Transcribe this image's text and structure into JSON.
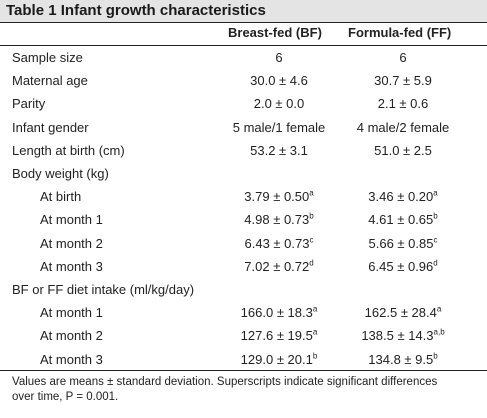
{
  "table": {
    "title": "Table 1 Infant growth characteristics",
    "columns": [
      "Breast-fed (BF)",
      "Formula-fed (FF)"
    ],
    "rows": [
      {
        "label": "Sample size",
        "indent": false,
        "bf": "6",
        "bf_sup": "",
        "ff": "6",
        "ff_sup": ""
      },
      {
        "label": "Maternal age",
        "indent": false,
        "bf": "30.0 ± 4.6",
        "bf_sup": "",
        "ff": "30.7 ± 5.9",
        "ff_sup": ""
      },
      {
        "label": "Parity",
        "indent": false,
        "bf": "2.0 ± 0.0",
        "bf_sup": "",
        "ff": "2.1 ± 0.6",
        "ff_sup": ""
      },
      {
        "label": "Infant gender",
        "indent": false,
        "bf": "5 male/1 female",
        "bf_sup": "",
        "ff": "4 male/2 female",
        "ff_sup": ""
      },
      {
        "label": "Length at birth (cm)",
        "indent": false,
        "bf": "53.2 ± 3.1",
        "bf_sup": "",
        "ff": "51.0 ± 2.5",
        "ff_sup": ""
      },
      {
        "label": "Body weight (kg)",
        "indent": false,
        "bf": "",
        "bf_sup": "",
        "ff": "",
        "ff_sup": ""
      },
      {
        "label": "At birth",
        "indent": true,
        "bf": "3.79 ± 0.50",
        "bf_sup": "a",
        "ff": "3.46 ± 0.20",
        "ff_sup": "a"
      },
      {
        "label": "At month 1",
        "indent": true,
        "bf": "4.98 ± 0.73",
        "bf_sup": "b",
        "ff": "4.61 ± 0.65",
        "ff_sup": "b"
      },
      {
        "label": "At month 2",
        "indent": true,
        "bf": "6.43 ± 0.73",
        "bf_sup": "c",
        "ff": "5.66 ± 0.85",
        "ff_sup": "c"
      },
      {
        "label": "At month 3",
        "indent": true,
        "bf": "7.02 ± 0.72",
        "bf_sup": "d",
        "ff": "6.45 ± 0.96",
        "ff_sup": "d"
      },
      {
        "label": "BF or FF diet intake (ml/kg/day)",
        "indent": false,
        "bf": "",
        "bf_sup": "",
        "ff": "",
        "ff_sup": ""
      },
      {
        "label": "At month 1",
        "indent": true,
        "bf": "166.0 ± 18.3",
        "bf_sup": "a",
        "ff": "162.5 ± 28.4",
        "ff_sup": "a"
      },
      {
        "label": "At month 2",
        "indent": true,
        "bf": "127.6 ± 19.5",
        "bf_sup": "a",
        "ff": "138.5 ± 14.3",
        "ff_sup": "a,b"
      },
      {
        "label": "At month 3",
        "indent": true,
        "bf": "129.0 ± 20.1",
        "bf_sup": "b",
        "ff": "134.8 ± 9.5",
        "ff_sup": "b"
      }
    ],
    "footnote": "Values are means ± standard deviation. Superscripts indicate significant differences over time, P = 0.001."
  }
}
